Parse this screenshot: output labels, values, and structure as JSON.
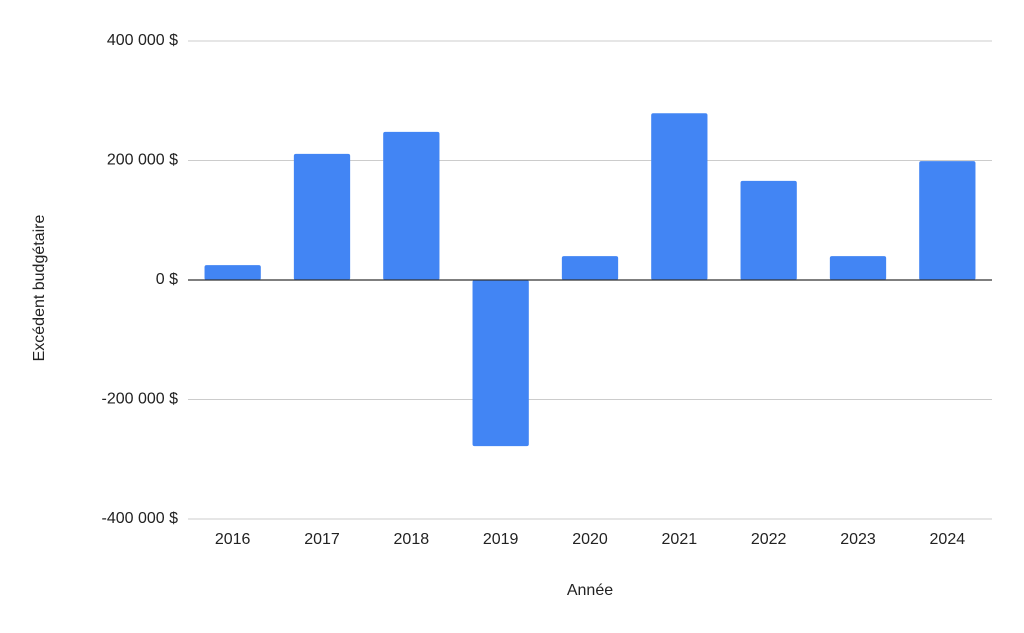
{
  "chart_data": {
    "type": "bar",
    "x_label": "Année",
    "y_label": "Excédent budgétaire",
    "categories": [
      "2016",
      "2017",
      "2018",
      "2019",
      "2020",
      "2021",
      "2022",
      "2023",
      "2024"
    ],
    "values": [
      25000,
      211000,
      248000,
      -278000,
      40000,
      279000,
      166000,
      40000,
      199000
    ],
    "color": "#4285f4",
    "ylim": [
      -400000,
      400000
    ],
    "yticks": [
      {
        "value": -400000,
        "label": "-400 000 $"
      },
      {
        "value": -200000,
        "label": "-200 000 $"
      },
      {
        "value": 0,
        "label": "0 $"
      },
      {
        "value": 200000,
        "label": "200 000 $"
      },
      {
        "value": 400000,
        "label": "400 000 $"
      }
    ],
    "grid": true
  }
}
